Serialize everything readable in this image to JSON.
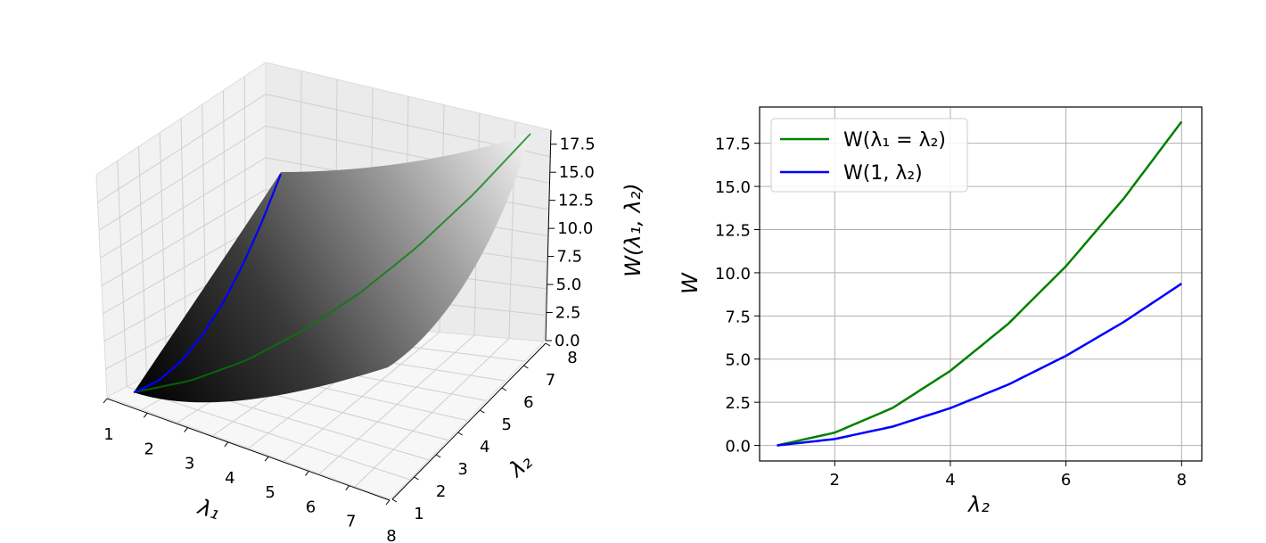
{
  "chart_data": [
    {
      "type": "surface",
      "panel": "left",
      "xlabel": "λ₁",
      "ylabel": "λ₂",
      "zlabel": "W(λ₁, λ₂)",
      "x_ticks": [
        "1",
        "2",
        "3",
        "4",
        "5",
        "6",
        "7",
        "8"
      ],
      "y_ticks": [
        "1",
        "2",
        "3",
        "4",
        "5",
        "6",
        "7",
        "8"
      ],
      "z_ticks": [
        "0.0",
        "2.5",
        "5.0",
        "7.5",
        "10.0",
        "12.5",
        "15.0",
        "17.5"
      ],
      "xlim": [
        1,
        8
      ],
      "ylim": [
        1,
        8
      ],
      "zlim": [
        0,
        18.75
      ],
      "surface_colormap": "gray",
      "grid": true,
      "lines": [
        {
          "color": "#008000",
          "path": "λ₁ = λ₂",
          "x": [
            1,
            2,
            3,
            4,
            5,
            6,
            7,
            8
          ],
          "y": [
            1,
            2,
            3,
            4,
            5,
            6,
            7,
            8
          ],
          "z": [
            0.0,
            0.74,
            2.17,
            4.32,
            7.04,
            10.38,
            14.3,
            18.75
          ]
        },
        {
          "color": "#0000ff",
          "path": "λ₁ = 1",
          "x": [
            1,
            1,
            1,
            1,
            1,
            1,
            1,
            1
          ],
          "y": [
            1,
            2,
            3,
            4,
            5,
            6,
            7,
            8
          ],
          "z": [
            0.0,
            0.37,
            1.09,
            2.16,
            3.52,
            5.19,
            7.15,
            9.37
          ]
        }
      ]
    },
    {
      "type": "line",
      "panel": "right",
      "xlabel": "λ₂",
      "ylabel": "W",
      "xlim": [
        0.7,
        8.35
      ],
      "ylim": [
        -0.9,
        19.6
      ],
      "x_ticks": [
        2,
        4,
        6,
        8
      ],
      "y_ticks": [
        0.0,
        2.5,
        5.0,
        7.5,
        10.0,
        12.5,
        15.0,
        17.5
      ],
      "y_tick_labels": [
        "0.0",
        "2.5",
        "5.0",
        "7.5",
        "10.0",
        "12.5",
        "15.0",
        "17.5"
      ],
      "grid": true,
      "legend_position": "upper-left",
      "x": [
        1,
        2,
        3,
        4,
        5,
        6,
        7,
        8
      ],
      "series": [
        {
          "name": "W(λ₁ = λ₂)",
          "color": "#008000",
          "values": [
            0.0,
            0.74,
            2.17,
            4.32,
            7.04,
            10.38,
            14.3,
            18.75
          ]
        },
        {
          "name": "W(1, λ₂)",
          "color": "#0000ff",
          "values": [
            0.0,
            0.37,
            1.09,
            2.16,
            3.52,
            5.19,
            7.15,
            9.37
          ]
        }
      ]
    }
  ]
}
